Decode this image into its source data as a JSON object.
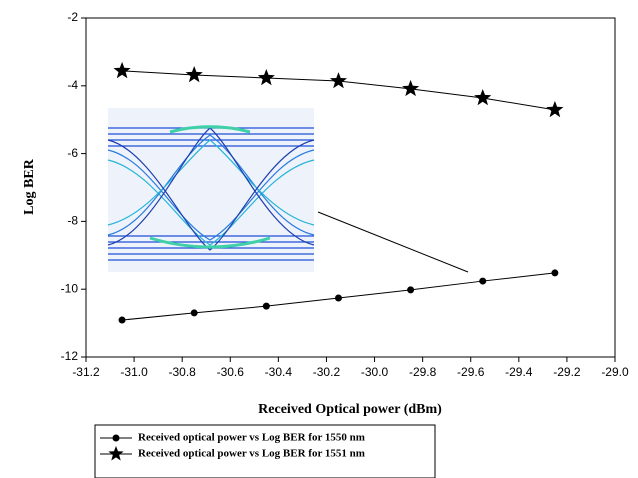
{
  "chart_data": {
    "type": "line",
    "x_label": "Received Optical power (dBm)",
    "y_label": "Log BER",
    "xlim": [
      -31.2,
      -29.0
    ],
    "xticks": [
      -31.2,
      {
        "value": -31.0,
        "label": "-31.0"
      },
      -30.8,
      -30.6,
      -30.4,
      -30.2,
      {
        "value": -30.0,
        "label": "-30.0"
      },
      -29.8,
      -29.6,
      -29.4,
      -29.2,
      {
        "value": -29.0,
        "label": "-29.0"
      }
    ],
    "ylim": [
      -12,
      -2
    ],
    "yticks": [
      -12,
      -10,
      -8,
      -6,
      -4,
      -2
    ],
    "legend": "below",
    "series": [
      {
        "name": "Received optical power vs Log BER for 1550 nm",
        "color": "#000000",
        "marker": "circle",
        "x": [
          -31.05,
          -30.75,
          -30.45,
          -30.15,
          -29.85,
          -29.55,
          -29.25
        ],
        "values": [
          -10.91,
          -10.7,
          -10.5,
          -10.26,
          -10.02,
          -9.76,
          -9.52
        ]
      },
      {
        "name": "Received optical power vs Log BER for 1551 nm",
        "color": "#000000",
        "marker": "star",
        "x": [
          -31.05,
          -30.75,
          -30.45,
          -30.15,
          -29.85,
          -29.55,
          -29.25
        ],
        "values": [
          -3.56,
          -3.68,
          -3.77,
          -3.86,
          -4.09,
          -4.36,
          -4.71
        ]
      }
    ]
  }
}
